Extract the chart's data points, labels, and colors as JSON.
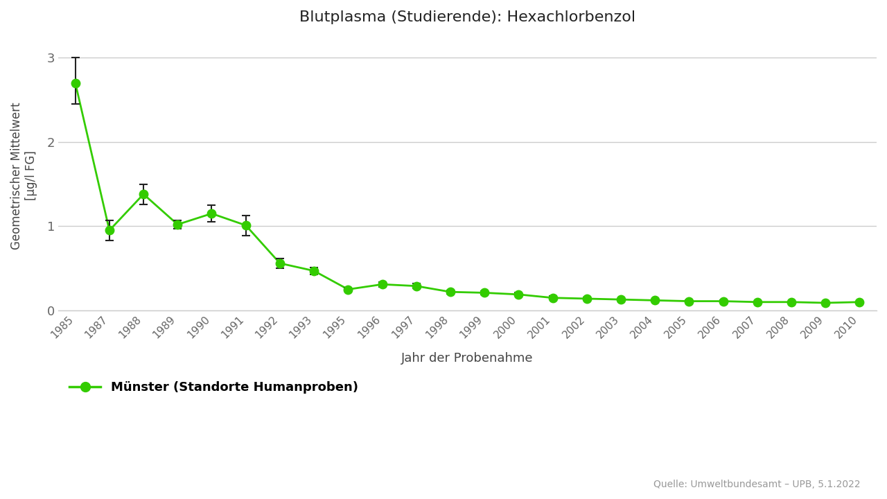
{
  "title": "Blutplasma (Studierende): Hexachlorbenzol",
  "xlabel": "Jahr der Probenahme",
  "ylabel": "Geometrischer Mittelwert\n[µg/l FG]",
  "legend_label": "Münster (Standorte Humanproben)",
  "source_text": "Quelle: Umweltbundesamt – UPB, 5.1.2022",
  "years": [
    1985,
    1987,
    1988,
    1989,
    1990,
    1991,
    1992,
    1993,
    1995,
    1996,
    1997,
    1998,
    1999,
    2000,
    2001,
    2002,
    2003,
    2004,
    2005,
    2006,
    2007,
    2008,
    2009,
    2010
  ],
  "values": [
    2.7,
    0.95,
    1.38,
    1.02,
    1.15,
    1.01,
    0.56,
    0.47,
    0.25,
    0.31,
    0.29,
    0.22,
    0.21,
    0.19,
    0.15,
    0.14,
    0.13,
    0.12,
    0.11,
    0.11,
    0.1,
    0.1,
    0.09,
    0.1
  ],
  "err_low": [
    0.25,
    0.12,
    0.12,
    0.05,
    0.1,
    0.12,
    0.06,
    0.04,
    0.02,
    0.03,
    0.03,
    0.02,
    0.02,
    0.02,
    0.02,
    0.015,
    0.01,
    0.01,
    0.01,
    0.01,
    0.01,
    0.01,
    0.01,
    0.01
  ],
  "err_high": [
    0.3,
    0.12,
    0.12,
    0.05,
    0.1,
    0.12,
    0.06,
    0.04,
    0.02,
    0.03,
    0.03,
    0.02,
    0.02,
    0.02,
    0.02,
    0.015,
    0.01,
    0.01,
    0.01,
    0.01,
    0.01,
    0.01,
    0.01,
    0.01
  ],
  "line_color": "#33cc00",
  "marker_color": "#33cc00",
  "error_color": "#222222",
  "background_color": "#ffffff",
  "grid_color": "#cccccc",
  "ylim": [
    0,
    3.2
  ],
  "yticks": [
    0,
    1,
    2,
    3
  ],
  "xlim": [
    1984,
    2011
  ]
}
